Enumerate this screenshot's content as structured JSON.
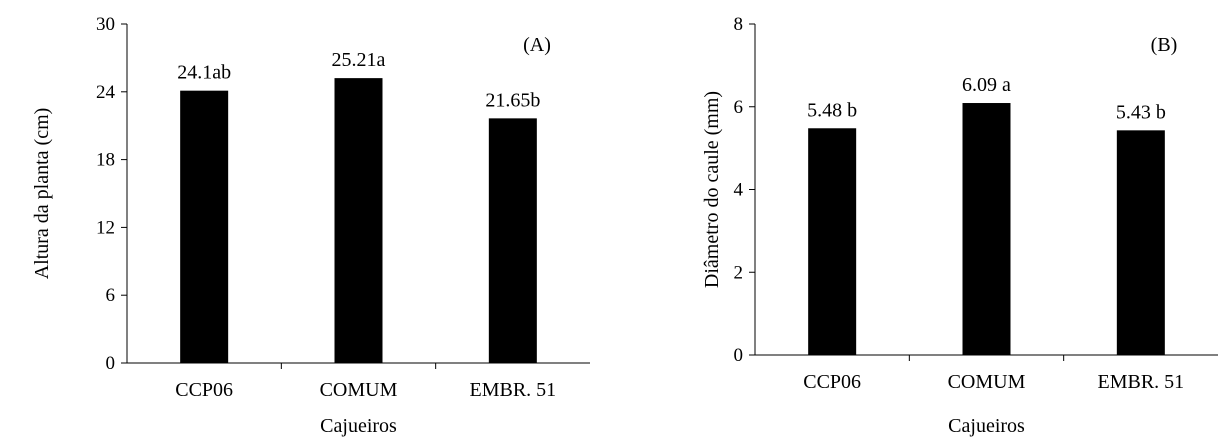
{
  "chart_data": [
    {
      "type": "bar",
      "panel_label": "(A)",
      "categories": [
        "CCP06",
        "COMUM",
        "EMBR. 51"
      ],
      "values": [
        24.1,
        25.21,
        21.65
      ],
      "data_labels": [
        "24.1ab",
        "25.21a",
        "21.65b"
      ],
      "xlabel": "Cajueiros",
      "ylabel": "Altura da planta (cm)",
      "ylim": [
        0,
        30
      ],
      "yticks": [
        0,
        6,
        12,
        18,
        24,
        30
      ],
      "grid": false,
      "bar_color": "#000000"
    },
    {
      "type": "bar",
      "panel_label": "(B)",
      "categories": [
        "CCP06",
        "COMUM",
        "EMBR. 51"
      ],
      "values": [
        5.48,
        6.09,
        5.43
      ],
      "data_labels": [
        "5.48 b",
        "6.09 a",
        "5.43 b"
      ],
      "xlabel": "Cajueiros",
      "ylabel": "Diâmetro do caule (mm)",
      "ylim": [
        0,
        8
      ],
      "yticks": [
        0,
        2,
        4,
        6,
        8
      ],
      "grid": false,
      "bar_color": "#000000"
    }
  ]
}
